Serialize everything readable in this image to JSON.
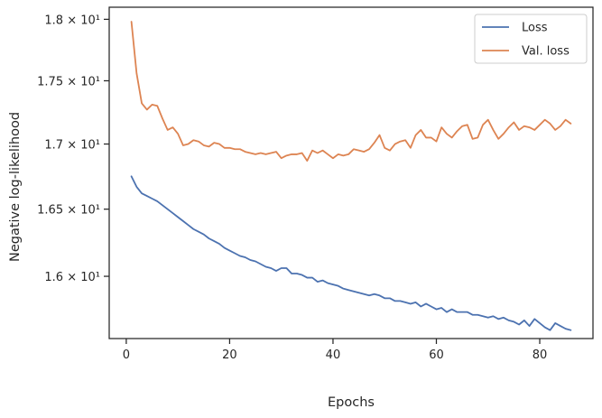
{
  "chart_data": {
    "type": "line",
    "xlabel": "Epochs",
    "ylabel": "Negative log-likelihood",
    "xlim": [
      -3.3,
      90.3
    ],
    "ylim": [
      15.55,
      18.1
    ],
    "yscale": "log",
    "grid": false,
    "legend_position": "top-right",
    "x_ticks": [
      0,
      20,
      40,
      60,
      80
    ],
    "y_ticks": [
      {
        "value": 16.0,
        "label": "1.6 × 10¹"
      },
      {
        "value": 16.5,
        "label": "1.65 × 10¹"
      },
      {
        "value": 17.0,
        "label": "1.7 × 10¹"
      },
      {
        "value": 17.5,
        "label": "1.75 × 10¹"
      },
      {
        "value": 18.0,
        "label": "1.8 × 10¹"
      }
    ],
    "series": [
      {
        "name": "Loss",
        "color": "#4c72b0",
        "x": [
          1,
          2,
          3,
          4,
          5,
          6,
          7,
          8,
          9,
          10,
          11,
          12,
          13,
          14,
          15,
          16,
          17,
          18,
          19,
          20,
          21,
          22,
          23,
          24,
          25,
          26,
          27,
          28,
          29,
          30,
          31,
          32,
          33,
          34,
          35,
          36,
          37,
          38,
          39,
          40,
          41,
          42,
          43,
          44,
          45,
          46,
          47,
          48,
          49,
          50,
          51,
          52,
          53,
          54,
          55,
          56,
          57,
          58,
          59,
          60,
          61,
          62,
          63,
          64,
          65,
          66,
          67,
          68,
          69,
          70,
          71,
          72,
          73,
          74,
          75,
          76,
          77,
          78,
          79,
          80,
          81,
          82,
          83,
          84,
          85,
          86
        ],
        "values": [
          16.75,
          16.67,
          16.62,
          16.6,
          16.58,
          16.56,
          16.53,
          16.5,
          16.47,
          16.44,
          16.41,
          16.38,
          16.35,
          16.33,
          16.31,
          16.28,
          16.26,
          16.24,
          16.21,
          16.19,
          16.17,
          16.15,
          16.14,
          16.12,
          16.11,
          16.09,
          16.07,
          16.06,
          16.04,
          16.06,
          16.06,
          16.02,
          16.02,
          16.01,
          15.99,
          15.99,
          15.96,
          15.97,
          15.95,
          15.94,
          15.93,
          15.91,
          15.9,
          15.89,
          15.88,
          15.87,
          15.86,
          15.87,
          15.86,
          15.84,
          15.84,
          15.82,
          15.82,
          15.81,
          15.8,
          15.81,
          15.78,
          15.8,
          15.78,
          15.76,
          15.77,
          15.74,
          15.76,
          15.74,
          15.74,
          15.74,
          15.72,
          15.72,
          15.71,
          15.7,
          15.71,
          15.69,
          15.7,
          15.68,
          15.67,
          15.65,
          15.68,
          15.64,
          15.69,
          15.66,
          15.63,
          15.61,
          15.66,
          15.64,
          15.62,
          15.61
        ]
      },
      {
        "name": "Val. loss",
        "color": "#dd8452",
        "x": [
          1,
          2,
          3,
          4,
          5,
          6,
          7,
          8,
          9,
          10,
          11,
          12,
          13,
          14,
          15,
          16,
          17,
          18,
          19,
          20,
          21,
          22,
          23,
          24,
          25,
          26,
          27,
          28,
          29,
          30,
          31,
          32,
          33,
          34,
          35,
          36,
          37,
          38,
          39,
          40,
          41,
          42,
          43,
          44,
          45,
          46,
          47,
          48,
          49,
          50,
          51,
          52,
          53,
          54,
          55,
          56,
          57,
          58,
          59,
          60,
          61,
          62,
          63,
          64,
          65,
          66,
          67,
          68,
          69,
          70,
          71,
          72,
          73,
          74,
          75,
          76,
          77,
          78,
          79,
          80,
          81,
          82,
          83,
          84,
          85,
          86
        ],
        "values": [
          17.98,
          17.56,
          17.32,
          17.27,
          17.31,
          17.3,
          17.2,
          17.11,
          17.13,
          17.08,
          16.99,
          17.0,
          17.03,
          17.02,
          16.99,
          16.98,
          17.01,
          17.0,
          16.97,
          16.97,
          16.96,
          16.96,
          16.94,
          16.93,
          16.92,
          16.93,
          16.92,
          16.93,
          16.94,
          16.89,
          16.91,
          16.92,
          16.92,
          16.93,
          16.87,
          16.95,
          16.93,
          16.95,
          16.92,
          16.89,
          16.92,
          16.91,
          16.92,
          16.96,
          16.95,
          16.94,
          16.96,
          17.01,
          17.07,
          16.97,
          16.95,
          17.0,
          17.02,
          17.03,
          16.97,
          17.07,
          17.11,
          17.05,
          17.05,
          17.02,
          17.13,
          17.08,
          17.05,
          17.1,
          17.14,
          17.15,
          17.04,
          17.05,
          17.15,
          17.19,
          17.11,
          17.04,
          17.08,
          17.13,
          17.17,
          17.11,
          17.14,
          17.13,
          17.11,
          17.15,
          17.19,
          17.16,
          17.11,
          17.14,
          17.19,
          17.16
        ]
      }
    ]
  }
}
